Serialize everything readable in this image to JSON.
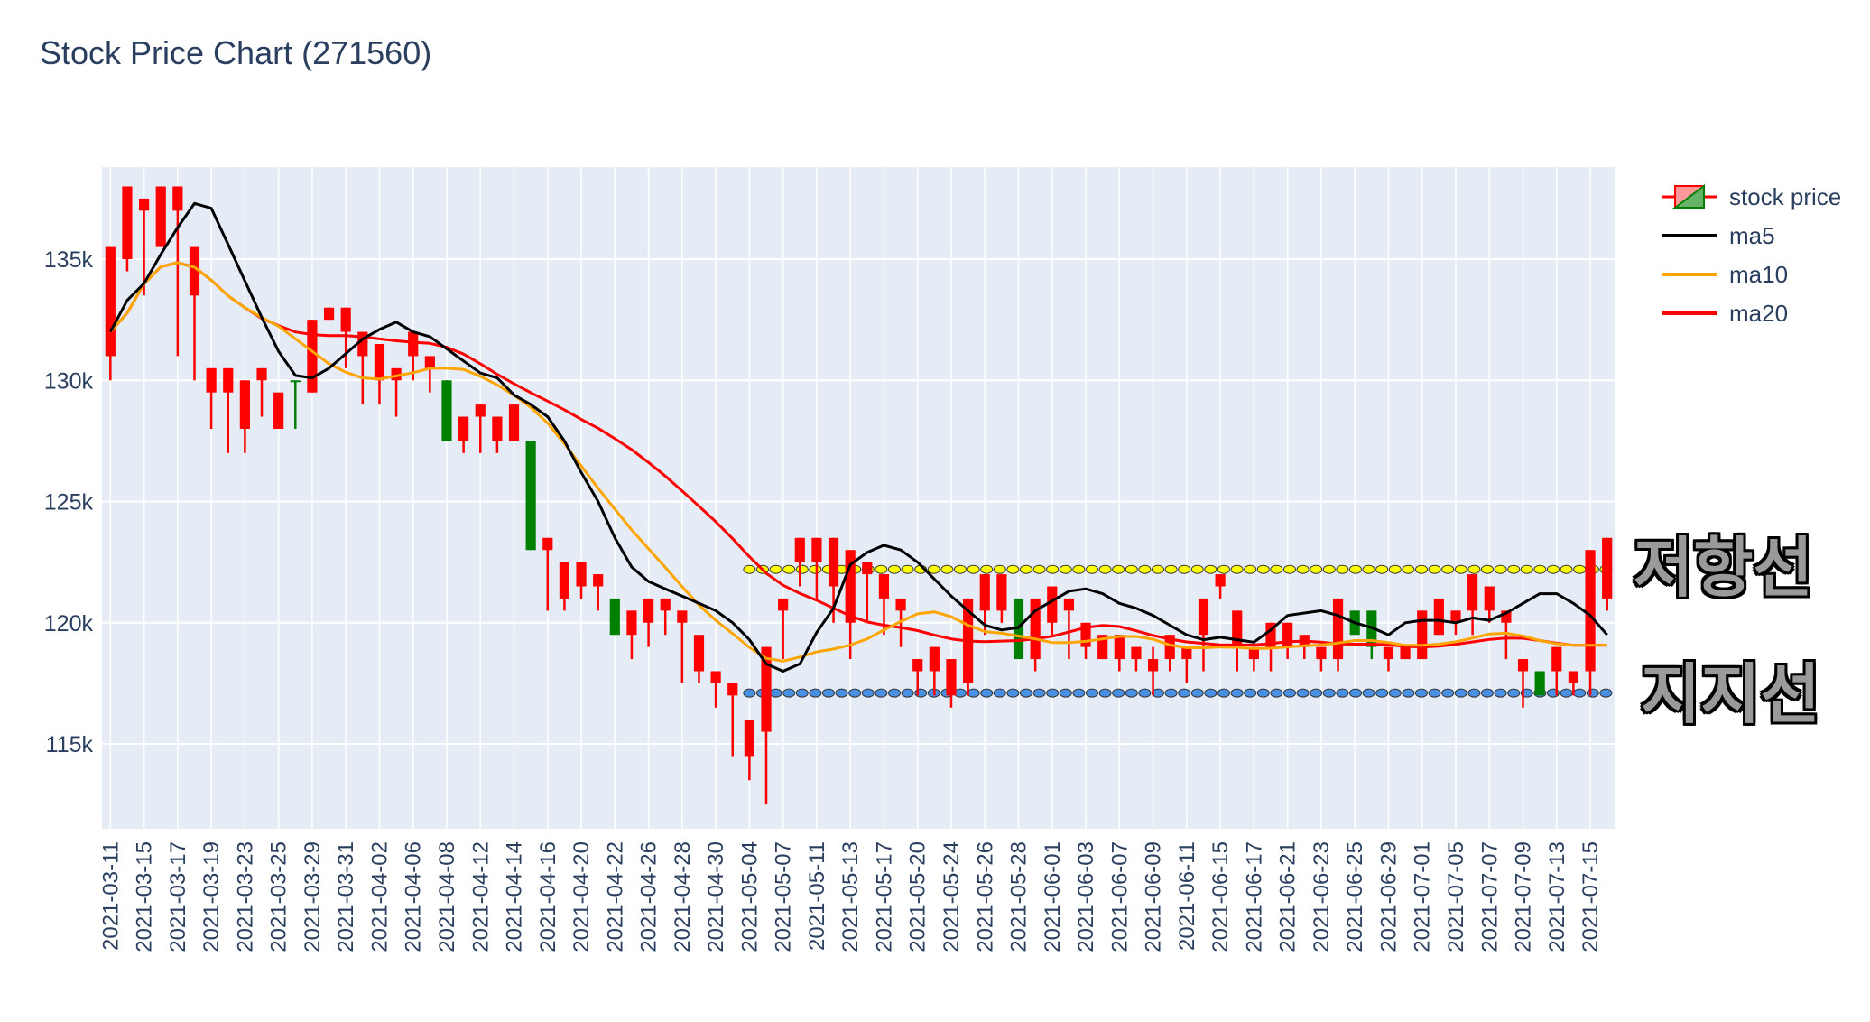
{
  "chart_data": {
    "type": "candlestick",
    "title": "Stock Price Chart (271560)",
    "ylim": [
      111500,
      138800
    ],
    "y_ticks": [
      115000,
      120000,
      125000,
      130000,
      135000
    ],
    "y_tick_labels": [
      "115k",
      "120k",
      "125k",
      "130k",
      "135k"
    ],
    "grid": true,
    "legend_position": "top-right",
    "colors": {
      "increasing": "#008000",
      "decreasing": "#ff0000",
      "ma5": "#000000",
      "ma10": "#ffa500",
      "ma20": "#ff0000",
      "resistance": "#ffff00",
      "support": "#4a90e2",
      "plot_bg": "#e5ecf6"
    },
    "legend": [
      "stock price",
      "ma5",
      "ma10",
      "ma20"
    ],
    "dates": [
      "2021-03-11",
      "2021-03-12",
      "2021-03-15",
      "2021-03-16",
      "2021-03-17",
      "2021-03-18",
      "2021-03-19",
      "2021-03-22",
      "2021-03-23",
      "2021-03-24",
      "2021-03-25",
      "2021-03-26",
      "2021-03-29",
      "2021-03-30",
      "2021-03-31",
      "2021-04-01",
      "2021-04-02",
      "2021-04-05",
      "2021-04-06",
      "2021-04-07",
      "2021-04-08",
      "2021-04-09",
      "2021-04-12",
      "2021-04-13",
      "2021-04-14",
      "2021-04-15",
      "2021-04-16",
      "2021-04-19",
      "2021-04-20",
      "2021-04-21",
      "2021-04-22",
      "2021-04-23",
      "2021-04-26",
      "2021-04-27",
      "2021-04-28",
      "2021-04-29",
      "2021-04-30",
      "2021-05-03",
      "2021-05-04",
      "2021-05-06",
      "2021-05-07",
      "2021-05-10",
      "2021-05-11",
      "2021-05-12",
      "2021-05-13",
      "2021-05-14",
      "2021-05-17",
      "2021-05-18",
      "2021-05-20",
      "2021-05-21",
      "2021-05-24",
      "2021-05-25",
      "2021-05-26",
      "2021-05-27",
      "2021-05-28",
      "2021-05-31",
      "2021-06-01",
      "2021-06-02",
      "2021-06-03",
      "2021-06-04",
      "2021-06-07",
      "2021-06-08",
      "2021-06-09",
      "2021-06-10",
      "2021-06-11",
      "2021-06-14",
      "2021-06-15",
      "2021-06-16",
      "2021-06-17",
      "2021-06-18",
      "2021-06-21",
      "2021-06-22",
      "2021-06-23",
      "2021-06-24",
      "2021-06-25",
      "2021-06-28",
      "2021-06-29",
      "2021-06-30",
      "2021-07-01",
      "2021-07-02",
      "2021-07-05",
      "2021-07-06",
      "2021-07-07",
      "2021-07-08",
      "2021-07-09",
      "2021-07-12",
      "2021-07-13",
      "2021-07-14",
      "2021-07-15",
      "2021-07-16"
    ],
    "x_tick_labels": [
      "2021-03-11",
      "2021-03-15",
      "2021-03-17",
      "2021-03-19",
      "2021-03-23",
      "2021-03-25",
      "2021-03-29",
      "2021-03-31",
      "2021-04-02",
      "2021-04-06",
      "2021-04-08",
      "2021-04-12",
      "2021-04-14",
      "2021-04-16",
      "2021-04-20",
      "2021-04-22",
      "2021-04-26",
      "2021-04-28",
      "2021-04-30",
      "2021-05-04",
      "2021-05-07",
      "2021-05-11",
      "2021-05-13",
      "2021-05-17",
      "2021-05-20",
      "2021-05-24",
      "2021-05-26",
      "2021-05-28",
      "2021-06-01",
      "2021-06-03",
      "2021-06-07",
      "2021-06-09",
      "2021-06-11",
      "2021-06-15",
      "2021-06-17",
      "2021-06-21",
      "2021-06-23",
      "2021-06-25",
      "2021-06-29",
      "2021-07-01",
      "2021-07-05",
      "2021-07-07",
      "2021-07-09",
      "2021-07-13",
      "2021-07-15"
    ],
    "ohlc": [
      [
        135500,
        135500,
        130000,
        131000
      ],
      [
        138000,
        138000,
        134500,
        135000
      ],
      [
        137500,
        137500,
        133500,
        137000
      ],
      [
        138000,
        138000,
        135500,
        135500
      ],
      [
        138000,
        138000,
        131000,
        137000
      ],
      [
        135500,
        135500,
        130000,
        133500
      ],
      [
        130500,
        130500,
        128000,
        129500
      ],
      [
        130500,
        130500,
        127000,
        129500
      ],
      [
        130000,
        130000,
        127000,
        128000
      ],
      [
        130500,
        130500,
        128500,
        130000
      ],
      [
        129500,
        129500,
        128000,
        128000
      ],
      [
        130000,
        130000,
        128000,
        130000
      ],
      [
        132500,
        132500,
        129500,
        129500
      ],
      [
        133000,
        133000,
        132500,
        132500
      ],
      [
        133000,
        133000,
        130500,
        132000
      ],
      [
        132000,
        132000,
        129000,
        131000
      ],
      [
        131500,
        131500,
        129000,
        130000
      ],
      [
        130500,
        130500,
        128500,
        130000
      ],
      [
        132000,
        132000,
        130000,
        131000
      ],
      [
        131000,
        131000,
        129500,
        130500
      ],
      [
        127500,
        130000,
        127500,
        130000
      ],
      [
        128500,
        128500,
        127000,
        127500
      ],
      [
        129000,
        129000,
        127000,
        128500
      ],
      [
        128500,
        128500,
        127000,
        127500
      ],
      [
        129000,
        129000,
        127500,
        127500
      ],
      [
        123000,
        127500,
        123000,
        127500
      ],
      [
        123500,
        123500,
        120500,
        123000
      ],
      [
        122500,
        122500,
        120500,
        121000
      ],
      [
        122500,
        122500,
        121000,
        121500
      ],
      [
        122000,
        122000,
        120500,
        121500
      ],
      [
        119500,
        121000,
        119500,
        121000
      ],
      [
        120500,
        120500,
        118500,
        119500
      ],
      [
        121000,
        121000,
        119000,
        120000
      ],
      [
        121000,
        121000,
        119500,
        120500
      ],
      [
        120500,
        120500,
        117500,
        120000
      ],
      [
        119500,
        119500,
        117500,
        118000
      ],
      [
        118000,
        118000,
        116500,
        117500
      ],
      [
        117500,
        117500,
        114500,
        117000
      ],
      [
        116000,
        116000,
        113500,
        114500
      ],
      [
        119000,
        119000,
        112500,
        115500
      ],
      [
        121000,
        121000,
        118500,
        120500
      ],
      [
        123500,
        123500,
        121500,
        122500
      ],
      [
        123500,
        123500,
        121000,
        122500
      ],
      [
        123500,
        123500,
        120000,
        121500
      ],
      [
        123000,
        123000,
        118500,
        120000
      ],
      [
        122500,
        122500,
        120000,
        122000
      ],
      [
        122000,
        122000,
        119500,
        121000
      ],
      [
        121000,
        121000,
        119000,
        120500
      ],
      [
        118500,
        118500,
        117000,
        118000
      ],
      [
        119000,
        119000,
        117000,
        118000
      ],
      [
        118500,
        118500,
        116500,
        117000
      ],
      [
        121000,
        121000,
        117000,
        117500
      ],
      [
        122000,
        122000,
        119500,
        120500
      ],
      [
        122000,
        122000,
        120000,
        120500
      ],
      [
        118500,
        121000,
        118500,
        121000
      ],
      [
        121000,
        121000,
        118000,
        118500
      ],
      [
        121500,
        121500,
        119500,
        120000
      ],
      [
        121000,
        121000,
        118500,
        120500
      ],
      [
        120000,
        120000,
        118500,
        119000
      ],
      [
        119500,
        119500,
        118500,
        118500
      ],
      [
        119500,
        119500,
        118000,
        118500
      ],
      [
        119000,
        119000,
        118000,
        118500
      ],
      [
        118500,
        119000,
        117000,
        118000
      ],
      [
        119500,
        119500,
        118000,
        118500
      ],
      [
        119000,
        119000,
        117500,
        118500
      ],
      [
        121000,
        121000,
        118000,
        119500
      ],
      [
        122000,
        122000,
        121000,
        121500
      ],
      [
        120500,
        120500,
        118000,
        119000
      ],
      [
        119000,
        119000,
        118000,
        118500
      ],
      [
        120000,
        120000,
        118000,
        119000
      ],
      [
        120000,
        120000,
        118500,
        119000
      ],
      [
        119500,
        119500,
        118500,
        119000
      ],
      [
        119000,
        119000,
        118000,
        118500
      ],
      [
        121000,
        121000,
        118000,
        118500
      ],
      [
        119500,
        120500,
        119500,
        120500
      ],
      [
        119000,
        120500,
        118500,
        120500
      ],
      [
        119000,
        119000,
        118000,
        118500
      ],
      [
        119000,
        119000,
        118500,
        118500
      ],
      [
        120500,
        120500,
        118500,
        118500
      ],
      [
        121000,
        121000,
        119500,
        119500
      ],
      [
        120500,
        120500,
        119500,
        120000
      ],
      [
        122000,
        122000,
        119500,
        120500
      ],
      [
        121500,
        121500,
        120000,
        120500
      ],
      [
        120500,
        120500,
        118500,
        120000
      ],
      [
        118500,
        118500,
        116500,
        118000
      ],
      [
        117000,
        118000,
        117000,
        118000
      ],
      [
        119000,
        119000,
        117000,
        118000
      ],
      [
        118000,
        118000,
        117000,
        117500
      ],
      [
        123000,
        123000,
        117000,
        118000
      ],
      [
        123500,
        123500,
        120500,
        121000
      ]
    ],
    "ma5": [
      132000,
      133300,
      134000,
      135200,
      136300,
      137300,
      137100,
      135600,
      134100,
      132600,
      131200,
      130200,
      130100,
      130500,
      131100,
      131700,
      132100,
      132400,
      132000,
      131800,
      131300,
      130800,
      130300,
      130100,
      129400,
      129000,
      128500,
      127500,
      126200,
      125000,
      123500,
      122300,
      121700,
      121400,
      121100,
      120800,
      120500,
      120000,
      119300,
      118300,
      118000,
      118300,
      119600,
      120600,
      122400,
      122900,
      123200,
      123000,
      122500,
      121800,
      121100,
      120500,
      119900,
      119700,
      119800,
      120500,
      120900,
      121300,
      121400,
      121200,
      120800,
      120600,
      120300,
      119900,
      119500,
      119300,
      119400,
      119300,
      119200,
      119700,
      120300,
      120400,
      120500,
      120300,
      120000,
      119800,
      119500,
      120000,
      120100,
      120100,
      120000,
      120200,
      120100,
      120400,
      120800,
      121200,
      121200,
      120800,
      120300,
      119500
    ]
  },
  "annotations": {
    "resistance_label": "저항선",
    "support_label": "지지선"
  },
  "levels": {
    "resistance": 122200,
    "support": 117100
  }
}
